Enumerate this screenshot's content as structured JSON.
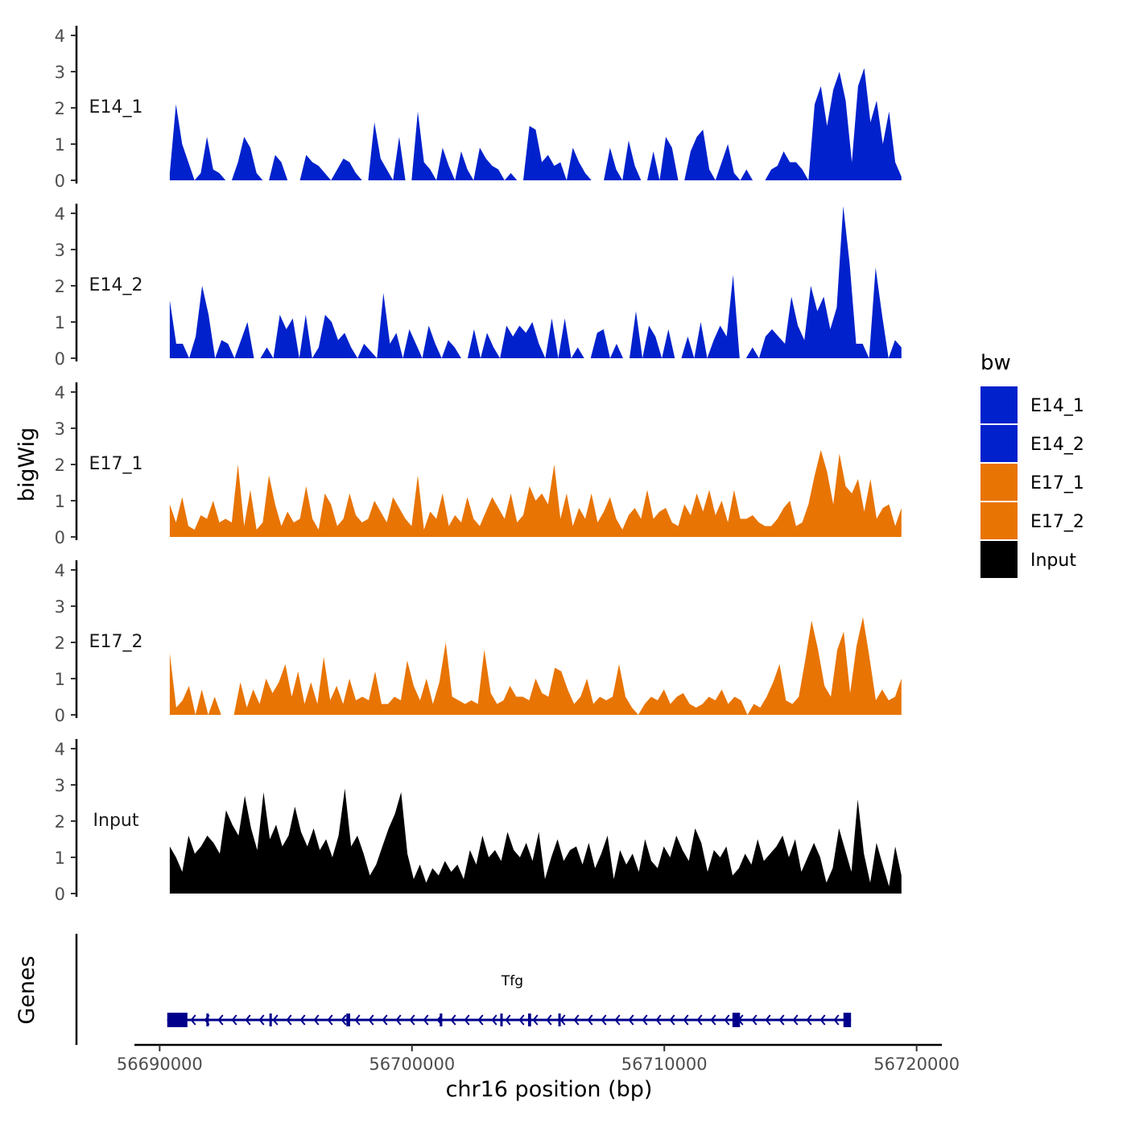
{
  "chart_data": {
    "type": "area",
    "title": "",
    "ylabel": "bigWig",
    "xlabel": "chr16 position (bp)",
    "xlim": [
      56689000,
      56721000
    ],
    "ylim": [
      0,
      4.3
    ],
    "yticks": [
      0,
      1,
      2,
      3,
      4
    ],
    "xticks": [
      56690000,
      56700000,
      56710000,
      56720000
    ],
    "xtick_labels": [
      "56690000",
      "56700000",
      "56710000",
      "56720000"
    ],
    "legend": {
      "title": "bw",
      "position": "right",
      "entries": [
        {
          "label": "E14_1",
          "color": "#0021CC"
        },
        {
          "label": "E14_2",
          "color": "#0021CC"
        },
        {
          "label": "E17_1",
          "color": "#E87403"
        },
        {
          "label": "E17_2",
          "color": "#E87403"
        },
        {
          "label": "Input",
          "color": "#000000"
        }
      ]
    },
    "series": [
      {
        "name": "E14_1",
        "color": "#0021CC",
        "x_start": 56690400,
        "x_end": 56719400,
        "values": [
          0.2,
          2.1,
          1.0,
          0.5,
          0,
          0.2,
          1.2,
          0.3,
          0.2,
          0,
          0,
          0.5,
          1.2,
          0.9,
          0.2,
          0,
          0,
          0.7,
          0.5,
          0,
          0,
          0,
          0.7,
          0.5,
          0.4,
          0.2,
          0,
          0.3,
          0.6,
          0.5,
          0.2,
          0,
          0,
          1.6,
          0.6,
          0.3,
          0,
          1.2,
          0,
          0,
          1.9,
          0.5,
          0.3,
          0,
          0.9,
          0.4,
          0,
          0.8,
          0.3,
          0,
          0.9,
          0.6,
          0.4,
          0.3,
          0,
          0.2,
          0,
          0,
          1.5,
          1.4,
          0.5,
          0.7,
          0.4,
          0.5,
          0,
          0.9,
          0.5,
          0.2,
          0,
          0,
          0,
          0.9,
          0.3,
          0,
          1.1,
          0.4,
          0,
          0,
          0.8,
          0,
          1.2,
          0.9,
          0,
          0,
          0.8,
          1.2,
          1.4,
          0.3,
          0,
          0.5,
          1.0,
          0.2,
          0,
          0.3,
          0,
          0,
          0,
          0.3,
          0.4,
          0.8,
          0.5,
          0.5,
          0.3,
          0,
          2.1,
          2.6,
          1.5,
          2.5,
          3.0,
          2.2,
          0.5,
          2.6,
          3.1,
          1.6,
          2.2,
          1.0,
          1.9,
          0.5,
          0.1
        ]
      },
      {
        "name": "E14_2",
        "color": "#0021CC",
        "x_start": 56690400,
        "x_end": 56719400,
        "values": [
          1.6,
          0.4,
          0.4,
          0,
          0.6,
          2.0,
          1.2,
          0,
          0.5,
          0.4,
          0,
          0.5,
          1.0,
          0,
          0,
          0.3,
          0,
          1.2,
          0.8,
          1.1,
          0,
          1.2,
          0,
          0.3,
          1.2,
          1.0,
          0.5,
          0.7,
          0.3,
          0,
          0.4,
          0.2,
          0,
          1.8,
          0.4,
          0.7,
          0,
          0.8,
          0.4,
          0,
          0.9,
          0.4,
          0,
          0.5,
          0.3,
          0,
          0,
          0.8,
          0,
          0.7,
          0.3,
          0,
          0.9,
          0.6,
          0.9,
          0.7,
          1.0,
          0.4,
          0,
          1.1,
          0,
          1.1,
          0,
          0.3,
          0,
          0,
          0.7,
          0.8,
          0,
          0.4,
          0,
          0,
          1.3,
          0,
          0.9,
          0.6,
          0,
          0.8,
          0,
          0,
          0.6,
          0,
          1.0,
          0,
          0.5,
          0.9,
          0.6,
          2.3,
          0,
          0,
          0.3,
          0,
          0.6,
          0.8,
          0.6,
          0.4,
          1.7,
          0.9,
          0.5,
          2.0,
          1.3,
          1.7,
          0.8,
          1.4,
          4.2,
          2.6,
          0.4,
          0.4,
          0,
          2.5,
          1.2,
          0,
          0.5,
          0.3
        ]
      },
      {
        "name": "E17_1",
        "color": "#E87403",
        "x_start": 56690400,
        "x_end": 56719400,
        "values": [
          0.9,
          0.4,
          1.1,
          0.3,
          0.2,
          0.6,
          0.5,
          1.0,
          0.4,
          0.5,
          0.4,
          2.0,
          0.3,
          1.3,
          0.2,
          0.4,
          1.7,
          0.9,
          0.3,
          0.7,
          0.4,
          0.5,
          1.4,
          0.5,
          0.2,
          1.2,
          0.9,
          0.3,
          0.5,
          1.2,
          0.6,
          0.4,
          0.5,
          1.0,
          0.7,
          0.4,
          1.1,
          0.8,
          0.5,
          0.3,
          1.7,
          0.2,
          0.7,
          0.5,
          1.2,
          0.3,
          0.6,
          0.4,
          1.1,
          0.5,
          0.3,
          0.7,
          1.1,
          0.8,
          0.5,
          1.2,
          0.4,
          0.6,
          1.4,
          1.0,
          1.2,
          0.9,
          2.0,
          0.5,
          1.2,
          0.3,
          0.8,
          0.5,
          1.2,
          0.4,
          0.7,
          1.1,
          0.5,
          0.2,
          0.6,
          0.8,
          0.5,
          1.3,
          0.5,
          0.7,
          0.8,
          0.4,
          0.3,
          0.9,
          0.6,
          1.2,
          0.7,
          1.3,
          0.6,
          1.0,
          0.4,
          1.3,
          0.5,
          0.5,
          0.6,
          0.4,
          0.3,
          0.3,
          0.5,
          0.8,
          1.0,
          0.3,
          0.4,
          0.9,
          1.7,
          2.4,
          1.8,
          0.9,
          2.3,
          1.4,
          1.2,
          1.6,
          0.7,
          1.6,
          0.5,
          0.8,
          0.9,
          0.3,
          0.8
        ]
      },
      {
        "name": "E17_2",
        "color": "#E87403",
        "x_start": 56690400,
        "x_end": 56719400,
        "values": [
          1.7,
          0.2,
          0.4,
          0.8,
          0,
          0.7,
          0,
          0.5,
          0,
          0,
          0,
          0.9,
          0.2,
          0.7,
          0.3,
          1.0,
          0.6,
          0.9,
          1.4,
          0.5,
          1.2,
          0.3,
          0.9,
          0.3,
          1.6,
          0.4,
          0.8,
          0.3,
          1.0,
          0.4,
          0.5,
          0.4,
          1.2,
          0.3,
          0.3,
          0.5,
          0.4,
          1.5,
          0.8,
          0.4,
          1.0,
          0.3,
          0.9,
          2.0,
          0.5,
          0.4,
          0.3,
          0.4,
          0.3,
          1.8,
          0.6,
          0.3,
          0.4,
          0.8,
          0.5,
          0.5,
          0.4,
          1.0,
          0.6,
          0.5,
          1.3,
          1.2,
          0.7,
          0.3,
          0.5,
          1.0,
          0.3,
          0.5,
          0.4,
          0.5,
          1.4,
          0.5,
          0.2,
          0,
          0.3,
          0.5,
          0.4,
          0.7,
          0.3,
          0.5,
          0.6,
          0.3,
          0.2,
          0.3,
          0.5,
          0.4,
          0.7,
          0.3,
          0.5,
          0.4,
          0,
          0.3,
          0.2,
          0.5,
          0.9,
          1.4,
          0.4,
          0.3,
          0.5,
          1.5,
          2.6,
          1.8,
          0.8,
          0.5,
          1.8,
          2.3,
          0.6,
          1.9,
          2.7,
          1.6,
          0.4,
          0.7,
          0.4,
          0.5,
          1.0
        ]
      },
      {
        "name": "Input",
        "color": "#000000",
        "x_start": 56690400,
        "x_end": 56719400,
        "values": [
          1.3,
          1.0,
          0.6,
          1.6,
          1.1,
          1.3,
          1.6,
          1.4,
          1.1,
          2.3,
          1.9,
          1.6,
          2.7,
          1.8,
          1.2,
          2.8,
          1.5,
          1.9,
          1.3,
          1.6,
          2.4,
          1.7,
          1.3,
          1.8,
          1.2,
          1.5,
          1.0,
          1.6,
          2.9,
          1.3,
          1.6,
          1.1,
          0.5,
          0.8,
          1.3,
          1.8,
          2.2,
          2.8,
          1.1,
          0.4,
          0.8,
          0.3,
          0.7,
          0.5,
          0.9,
          0.6,
          0.8,
          0.4,
          1.2,
          0.8,
          1.6,
          1.0,
          1.2,
          0.9,
          1.7,
          1.2,
          1.0,
          1.4,
          0.9,
          1.7,
          0.4,
          1.0,
          1.5,
          0.9,
          1.2,
          1.3,
          0.8,
          1.4,
          0.7,
          1.1,
          1.6,
          0.4,
          1.2,
          0.8,
          1.1,
          0.6,
          1.5,
          0.9,
          0.7,
          1.3,
          1.0,
          1.6,
          1.2,
          0.9,
          1.8,
          1.4,
          0.6,
          1.2,
          1.0,
          1.3,
          0.5,
          0.7,
          1.1,
          0.8,
          1.5,
          0.9,
          1.1,
          1.3,
          1.6,
          1.0,
          1.5,
          0.6,
          1.0,
          1.4,
          1.0,
          0.3,
          0.7,
          1.8,
          1.2,
          0.6,
          2.6,
          1.1,
          0.3,
          1.4,
          0.8,
          0.2,
          1.3,
          0.5
        ]
      }
    ],
    "genes_track": {
      "ylabel": "Genes",
      "gene_name": "Tfg",
      "start": 56690300,
      "end": 56717400,
      "strand": "-",
      "color": "#00008B",
      "exons": [
        [
          56690300,
          56691100
        ],
        [
          56691850,
          56691900
        ],
        [
          56694350,
          56694420
        ],
        [
          56697400,
          56697550
        ],
        [
          56701100,
          56701200
        ],
        [
          56703500,
          56703560
        ],
        [
          56704600,
          56704720
        ],
        [
          56705800,
          56705860
        ],
        [
          56712700,
          56713000
        ],
        [
          56717100,
          56717400
        ]
      ]
    }
  }
}
